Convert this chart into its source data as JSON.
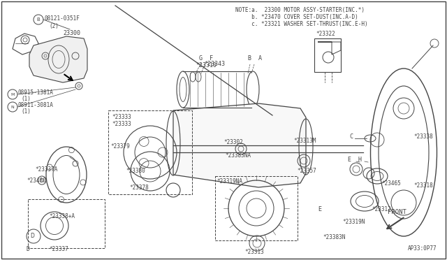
{
  "bg_color": "#ffffff",
  "line_color": "#444444",
  "note_lines": [
    "NOTE:a.  23300 MOTOR ASSY-STARTER(INC.*)",
    "     b. *23470 COVER SET-DUST(INC.A-D)",
    "     c. *23321 WASHER SET-THRUST(INC.E-H)"
  ],
  "diagram_id": "AP33:0P77"
}
